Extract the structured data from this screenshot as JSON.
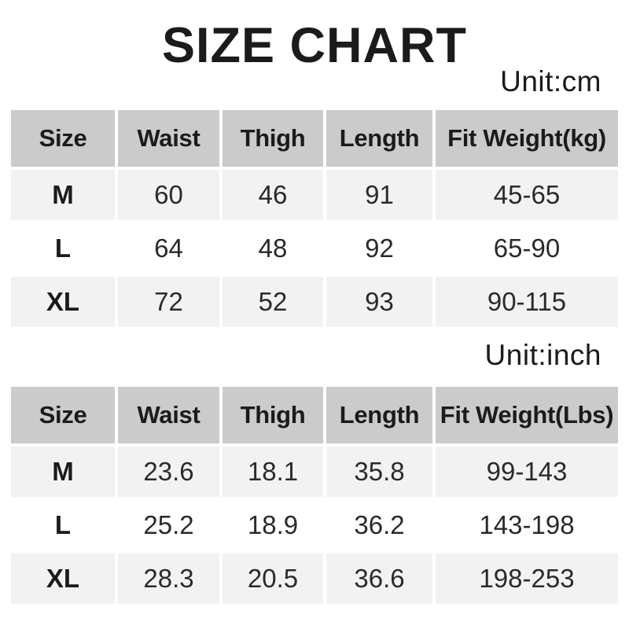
{
  "page_title": "SIZE CHART",
  "colors": {
    "background": "#ffffff",
    "header_cell_bg": "#cbcbcb",
    "stripe_row_bg": "#f2f2f2",
    "plain_row_bg": "#ffffff",
    "text": "#1b1b1b"
  },
  "chart_data": [
    {
      "type": "table",
      "unit_label": "Unit:cm",
      "columns": [
        "Size",
        "Waist",
        "Thigh",
        "Length",
        "Fit Weight(kg)"
      ],
      "rows": [
        [
          "M",
          "60",
          "46",
          "91",
          "45-65"
        ],
        [
          "L",
          "64",
          "48",
          "92",
          "65-90"
        ],
        [
          "XL",
          "72",
          "52",
          "93",
          "90-115"
        ]
      ]
    },
    {
      "type": "table",
      "unit_label": "Unit:inch",
      "columns": [
        "Size",
        "Waist",
        "Thigh",
        "Length",
        "Fit Weight(Lbs)"
      ],
      "rows": [
        [
          "M",
          "23.6",
          "18.1",
          "35.8",
          "99-143"
        ],
        [
          "L",
          "25.2",
          "18.9",
          "36.2",
          "143-198"
        ],
        [
          "XL",
          "28.3",
          "20.5",
          "36.6",
          "198-253"
        ]
      ]
    }
  ]
}
